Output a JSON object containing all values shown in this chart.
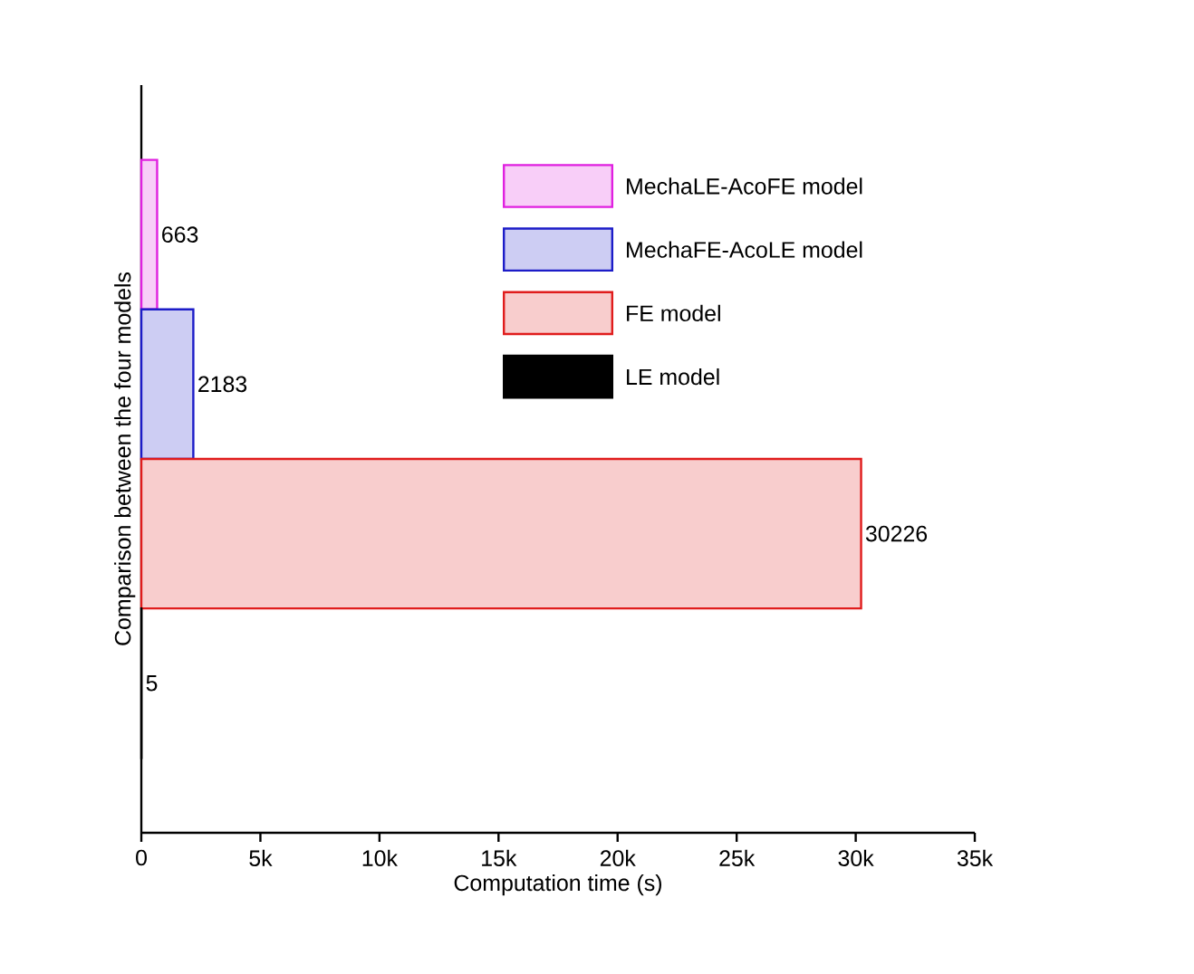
{
  "chart_data": {
    "type": "bar",
    "orientation": "horizontal",
    "categories": [
      null,
      null,
      null,
      null
    ],
    "series": [
      {
        "name": "MechaLE-AcoFE model",
        "color": "#e020e0",
        "values": [
          663,
          null,
          null,
          null
        ]
      },
      {
        "name": "MechaFE-AcoLE model",
        "color": "#1c1cc8",
        "values": [
          null,
          2183,
          null,
          null
        ]
      },
      {
        "name": "FE model",
        "color": "#e01c1c",
        "values": [
          null,
          null,
          30226,
          null
        ]
      },
      {
        "name": "LE model",
        "color": "#000000",
        "values": [
          null,
          null,
          null,
          5
        ]
      }
    ],
    "xlabel": "Computation time (s)",
    "ylabel": "Comparison between the four models",
    "xlim": [
      0,
      35000
    ],
    "xticks": [
      0,
      {
        "value": 5000,
        "label": "5k"
      },
      {
        "value": 10000,
        "label": "10k"
      },
      {
        "value": 15000,
        "label": "15k"
      },
      {
        "value": 20000,
        "label": "20k"
      },
      {
        "value": 25000,
        "label": "25k"
      },
      {
        "value": 30000,
        "label": "30k"
      },
      {
        "value": 35000,
        "label": "35k"
      }
    ],
    "data_labels": true,
    "legend": "top right"
  }
}
